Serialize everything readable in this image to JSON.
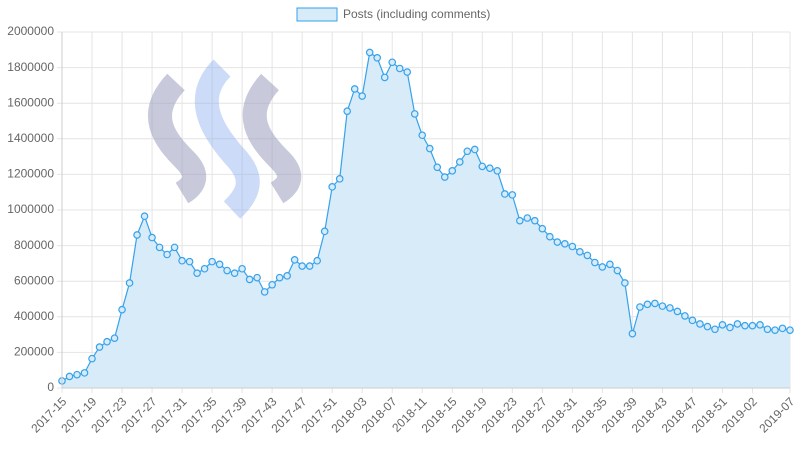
{
  "chart_data": {
    "type": "line",
    "categories": [
      "2017-15",
      null,
      null,
      null,
      "2017-19",
      null,
      null,
      null,
      "2017-23",
      null,
      null,
      null,
      "2017-27",
      null,
      null,
      null,
      "2017-31",
      null,
      null,
      null,
      "2017-35",
      null,
      null,
      null,
      "2017-39",
      null,
      null,
      null,
      "2017-43",
      null,
      null,
      null,
      "2017-47",
      null,
      null,
      null,
      "2017-51",
      null,
      null,
      null,
      "2018-03",
      null,
      null,
      null,
      "2018-07",
      null,
      null,
      null,
      "2018-11",
      null,
      null,
      null,
      "2018-15",
      null,
      null,
      null,
      "2018-19",
      null,
      null,
      null,
      "2018-23",
      null,
      null,
      null,
      "2018-27",
      null,
      null,
      null,
      "2018-31",
      null,
      null,
      null,
      "2018-35",
      null,
      null,
      null,
      "2018-39",
      null,
      null,
      null,
      "2018-43",
      null,
      null,
      null,
      "2018-47",
      null,
      null,
      null,
      "2018-51",
      null,
      null,
      null,
      "2019-02",
      null,
      null,
      null,
      null,
      "2019-07"
    ],
    "series": [
      {
        "name": "Posts (including comments)",
        "color": "#36a2eb",
        "fill": "#d7ebf9",
        "values": [
          40000,
          65000,
          75000,
          85000,
          165000,
          230000,
          260000,
          280000,
          440000,
          590000,
          860000,
          965000,
          845000,
          790000,
          750000,
          790000,
          715000,
          710000,
          645000,
          670000,
          710000,
          695000,
          660000,
          645000,
          670000,
          610000,
          620000,
          540000,
          580000,
          620000,
          630000,
          720000,
          685000,
          685000,
          715000,
          880000,
          1130000,
          1175000,
          1555000,
          1680000,
          1640000,
          1885000,
          1855000,
          1745000,
          1830000,
          1795000,
          1775000,
          1540000,
          1420000,
          1345000,
          1240000,
          1185000,
          1220000,
          1270000,
          1330000,
          1340000,
          1245000,
          1235000,
          1220000,
          1090000,
          1085000,
          940000,
          955000,
          940000,
          895000,
          850000,
          820000,
          810000,
          795000,
          765000,
          745000,
          705000,
          680000,
          695000,
          660000,
          590000,
          305000,
          455000,
          470000,
          475000,
          460000,
          450000,
          430000,
          405000,
          380000,
          360000,
          345000,
          330000,
          355000,
          340000,
          360000,
          350000,
          350000,
          355000,
          330000,
          325000,
          335000,
          325000
        ]
      }
    ],
    "ylim": [
      0,
      2000000
    ],
    "yticks": [
      0,
      200000,
      400000,
      600000,
      800000,
      1000000,
      1200000,
      1400000,
      1600000,
      1800000,
      2000000
    ],
    "grid": true
  }
}
